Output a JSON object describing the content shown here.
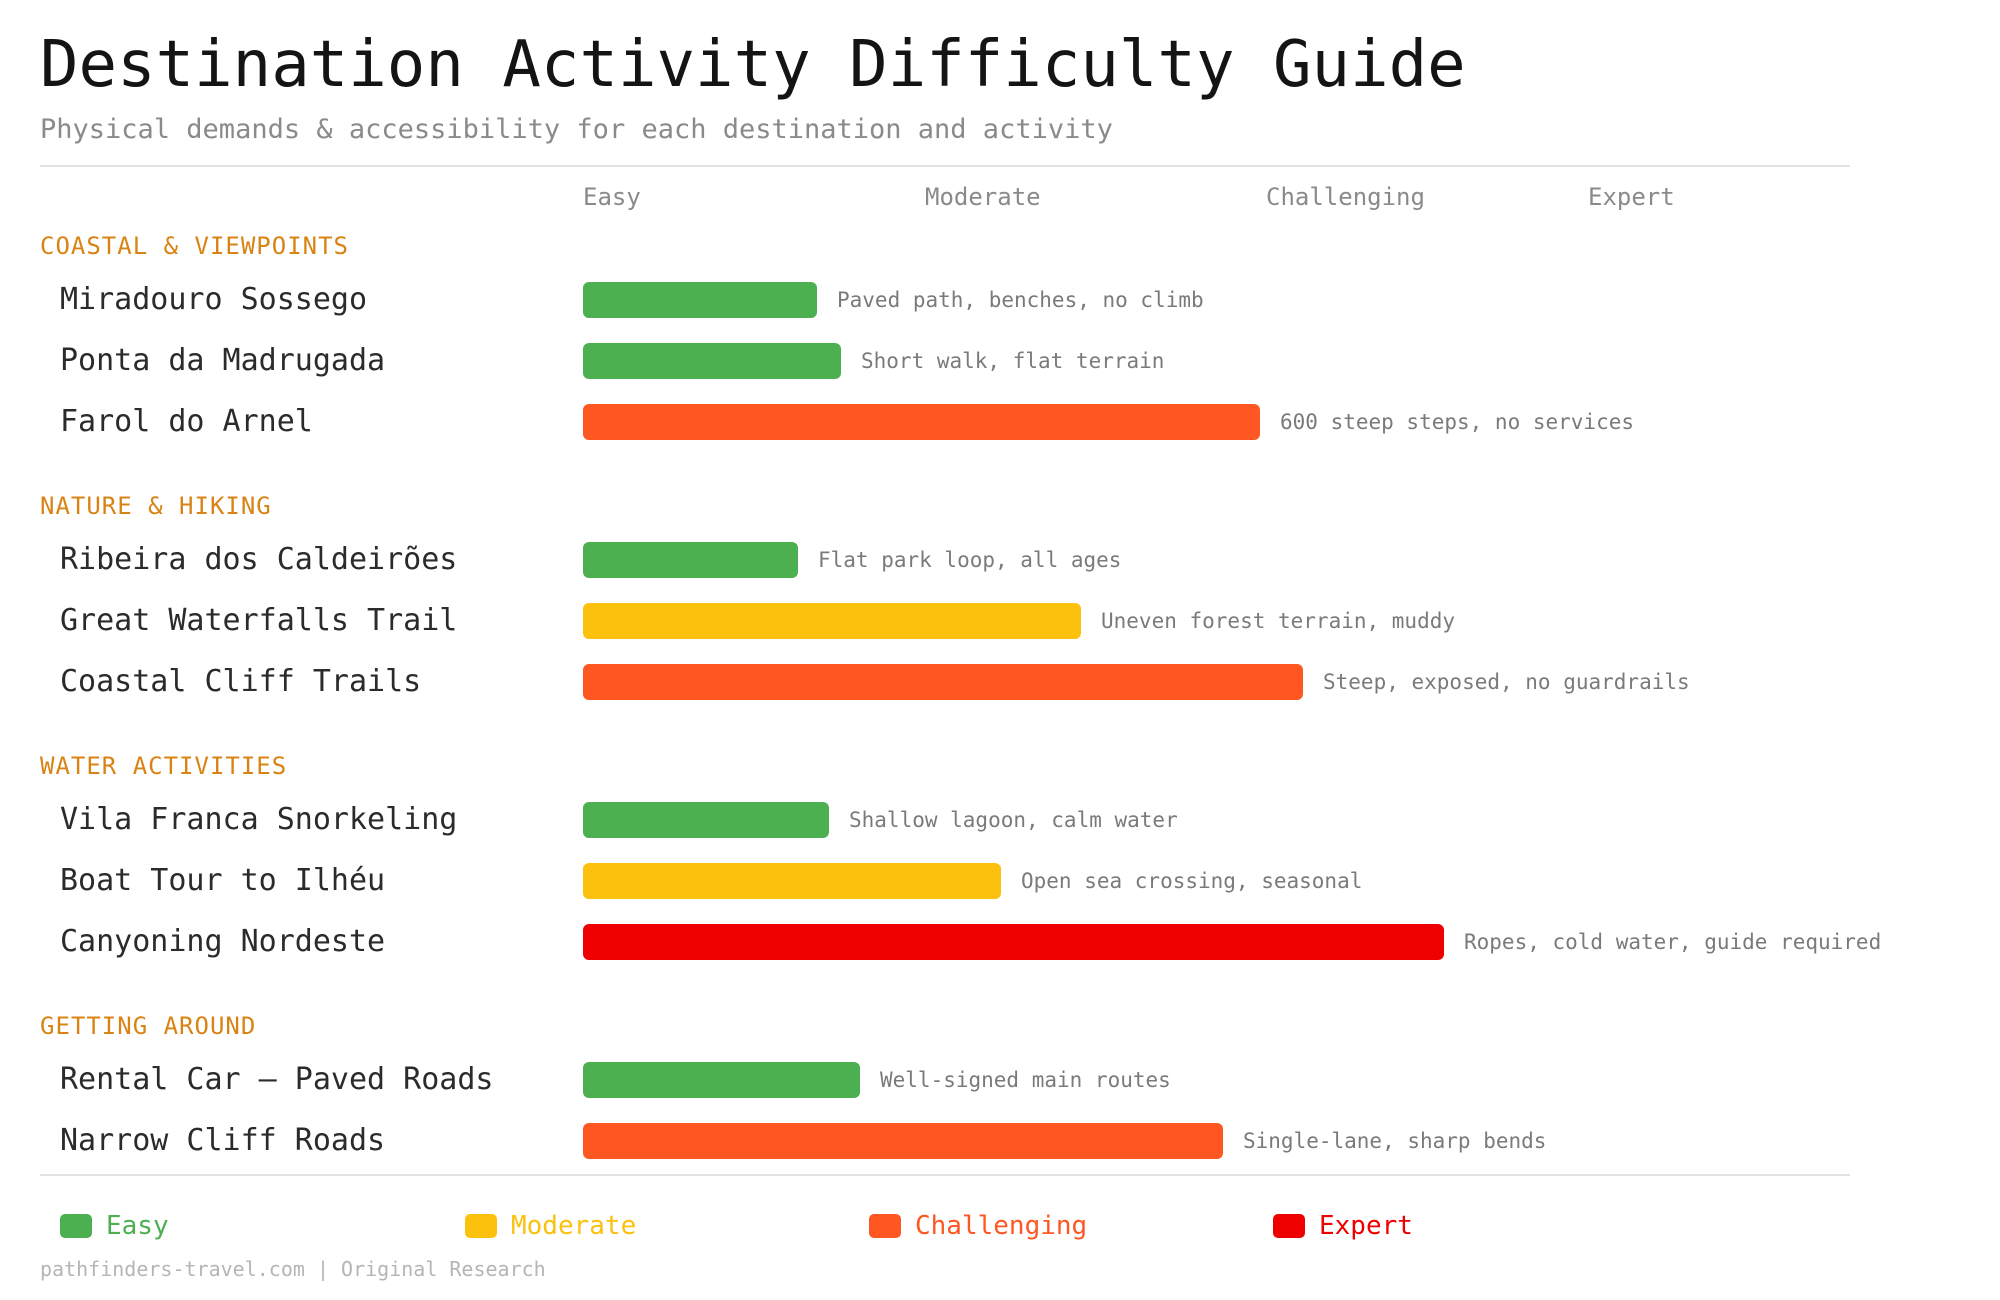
{
  "title": "Destination Activity Difficulty Guide",
  "subtitle": "Physical demands & accessibility for each destination and activity",
  "source": "pathfinders-travel.com | Original Research",
  "colors": {
    "Easy": "#4caf50",
    "Moderate": "#fbc10d",
    "Challenging": "#ff5722",
    "Expert": "#ee0000"
  },
  "legend": [
    {
      "label": "Easy",
      "level": "Easy"
    },
    {
      "label": "Moderate",
      "level": "Moderate"
    },
    {
      "label": "Challenging",
      "level": "Challenging"
    },
    {
      "label": "Expert",
      "level": "Expert"
    }
  ],
  "chart_data": {
    "type": "bar",
    "orientation": "horizontal",
    "title": "Destination Activity Difficulty Guide",
    "subtitle": "Physical demands & accessibility for each destination and activity",
    "x_ticks": [
      "Easy",
      "Moderate",
      "Challenging",
      "Expert"
    ],
    "xlim": [
      0,
      100
    ],
    "grid": false,
    "legend_position": "bottom",
    "groups": [
      {
        "name": "COASTAL & VIEWPOINTS",
        "items": [
          {
            "name": "Miradouro Sossego",
            "value": 19,
            "level": "Easy",
            "note": "Paved path, benches, no climb"
          },
          {
            "name": "Ponta da Madrugada",
            "value": 21,
            "level": "Easy",
            "note": "Short walk, flat terrain"
          },
          {
            "name": "Farol do Arnel",
            "value": 55,
            "level": "Challenging",
            "note": "600 steep steps, no services"
          }
        ]
      },
      {
        "name": "NATURE & HIKING",
        "items": [
          {
            "name": "Ribeira dos Caldeirões",
            "value": 17.5,
            "level": "Easy",
            "note": "Flat park loop, all ages"
          },
          {
            "name": "Great Waterfalls Trail",
            "value": 40.5,
            "level": "Moderate",
            "note": "Uneven forest terrain, muddy"
          },
          {
            "name": "Coastal Cliff Trails",
            "value": 58.5,
            "level": "Challenging",
            "note": "Steep, exposed, no guardrails"
          }
        ]
      },
      {
        "name": "WATER ACTIVITIES",
        "items": [
          {
            "name": "Vila Franca Snorkeling",
            "value": 20,
            "level": "Easy",
            "note": "Shallow lagoon, calm water"
          },
          {
            "name": "Boat Tour to Ilhéu",
            "value": 34,
            "level": "Moderate",
            "note": "Open sea crossing, seasonal"
          },
          {
            "name": "Canyoning Nordeste",
            "value": 70,
            "level": "Expert",
            "note": "Ropes, cold water, guide required"
          }
        ]
      },
      {
        "name": "GETTING AROUND",
        "items": [
          {
            "name": "Rental Car – Paved Roads",
            "value": 22.5,
            "level": "Easy",
            "note": "Well-signed main routes"
          },
          {
            "name": "Narrow Cliff Roads",
            "value": 52,
            "level": "Challenging",
            "note": "Single-lane, sharp bends"
          }
        ]
      }
    ]
  }
}
